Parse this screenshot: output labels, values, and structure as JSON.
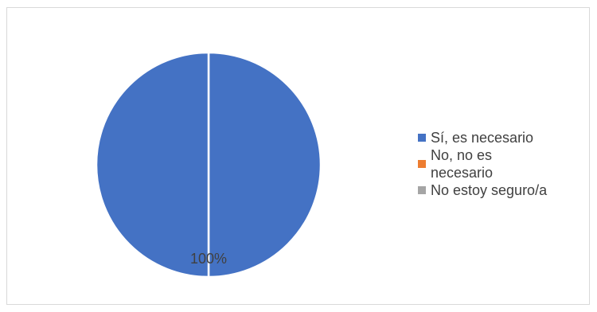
{
  "chart_data": {
    "type": "pie",
    "categories": [
      "Sí, es necesario",
      "No, no es necesario",
      "No estoy seguro/a"
    ],
    "values": [
      100,
      0,
      0
    ],
    "data_labels": [
      "100%",
      "",
      ""
    ],
    "colors": [
      "#4472c4",
      "#ed7d31",
      "#a5a5a5"
    ],
    "legend_position": "right",
    "title": ""
  }
}
